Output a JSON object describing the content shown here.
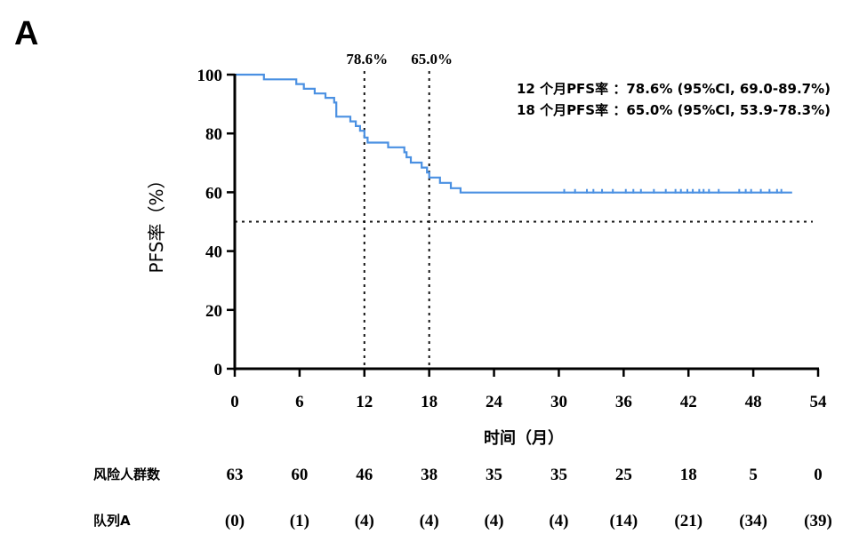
{
  "panel_label": "A",
  "chart_data": {
    "type": "line",
    "ylabel": "PFS率（%）",
    "xlabel": "时间（月）",
    "xlim": [
      0,
      54
    ],
    "ylim": [
      0,
      100
    ],
    "x_ticks": [
      0,
      6,
      12,
      18,
      24,
      30,
      36,
      42,
      48,
      54
    ],
    "y_ticks": [
      0,
      20,
      40,
      60,
      80,
      100
    ],
    "series": [
      {
        "color": "#4a90e2",
        "step_points": [
          [
            0,
            100
          ],
          [
            2.7,
            100
          ],
          [
            2.7,
            98.4
          ],
          [
            5.7,
            98.4
          ],
          [
            5.7,
            96.8
          ],
          [
            6.4,
            96.8
          ],
          [
            6.4,
            95.2
          ],
          [
            7.4,
            95.2
          ],
          [
            7.4,
            93.6
          ],
          [
            8.4,
            93.6
          ],
          [
            8.4,
            92.1
          ],
          [
            9.2,
            92.1
          ],
          [
            9.2,
            90.5
          ],
          [
            9.4,
            90.5
          ],
          [
            9.4,
            85.7
          ],
          [
            10.7,
            85.7
          ],
          [
            10.7,
            84.1
          ],
          [
            11.2,
            84.1
          ],
          [
            11.2,
            82.5
          ],
          [
            11.6,
            82.5
          ],
          [
            11.6,
            80.9
          ],
          [
            12.0,
            80.9
          ],
          [
            12.0,
            78.6
          ],
          [
            12.3,
            78.6
          ],
          [
            12.3,
            76.9
          ],
          [
            14.2,
            76.9
          ],
          [
            14.2,
            75.3
          ],
          [
            15.7,
            75.3
          ],
          [
            15.7,
            73.6
          ],
          [
            15.9,
            73.6
          ],
          [
            15.9,
            71.9
          ],
          [
            16.3,
            71.9
          ],
          [
            16.3,
            70.1
          ],
          [
            17.3,
            70.1
          ],
          [
            17.3,
            68.4
          ],
          [
            17.8,
            68.4
          ],
          [
            17.8,
            66.7
          ],
          [
            18.0,
            66.7
          ],
          [
            18.0,
            65.0
          ],
          [
            19.0,
            65.0
          ],
          [
            19.0,
            63.2
          ],
          [
            20.0,
            63.2
          ],
          [
            20.0,
            61.4
          ],
          [
            20.9,
            61.4
          ],
          [
            20.9,
            59.9
          ],
          [
            51.6,
            59.9
          ]
        ],
        "censor_times": [
          30.5,
          31.5,
          32.6,
          33.2,
          34.0,
          35.0,
          36.2,
          36.9,
          37.6,
          38.8,
          39.9,
          40.8,
          41.3,
          41.9,
          42.4,
          43.0,
          43.4,
          43.9,
          44.8,
          46.7,
          47.3,
          47.8,
          48.7,
          49.5,
          50.2,
          50.6
        ]
      }
    ],
    "reference_lines": {
      "horizontal_y": 50,
      "vertical_x": [
        12,
        18
      ]
    },
    "annotations": [
      {
        "x": 12,
        "text": "78.6%"
      },
      {
        "x": 18,
        "text": "65.0%"
      }
    ],
    "stats_text": [
      "12 个月PFS率 ：78.6% (95%CI, 69.0-89.7%)",
      "18 个月PFS率 ：65.0% (95%CI, 53.9-78.3%)"
    ],
    "risk_table": {
      "rows": [
        {
          "label": "风险人群数",
          "values": [
            "63",
            "60",
            "46",
            "38",
            "35",
            "35",
            "25",
            "18",
            "5",
            "0"
          ]
        },
        {
          "label": "队列A",
          "values": [
            "(0)",
            "(1)",
            "(4)",
            "(4)",
            "(4)",
            "(4)",
            "(14)",
            "(21)",
            "(34)",
            "(39)"
          ]
        }
      ]
    }
  }
}
